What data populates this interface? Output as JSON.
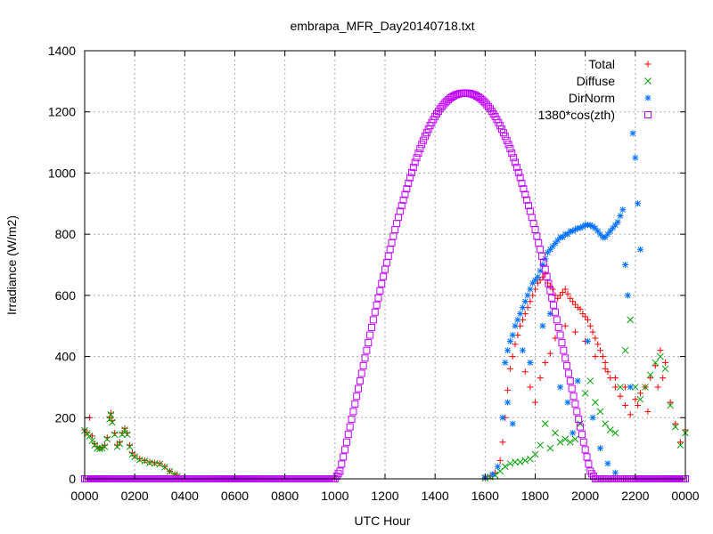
{
  "chart_data": {
    "type": "scatter",
    "title": "embrapa_MFR_Day20140718.txt",
    "xlabel": "UTC Hour",
    "ylabel": "Irradiance (W/m2)",
    "xlim": [
      0,
      24
    ],
    "ylim": [
      0,
      1400
    ],
    "x_ticks": [
      {
        "value": 0,
        "label": "0000"
      },
      {
        "value": 2,
        "label": "0200"
      },
      {
        "value": 4,
        "label": "0400"
      },
      {
        "value": 6,
        "label": "0600"
      },
      {
        "value": 8,
        "label": "0800"
      },
      {
        "value": 10,
        "label": "1000"
      },
      {
        "value": 12,
        "label": "1200"
      },
      {
        "value": 14,
        "label": "1400"
      },
      {
        "value": 16,
        "label": "1600"
      },
      {
        "value": 18,
        "label": "1800"
      },
      {
        "value": 20,
        "label": "2000"
      },
      {
        "value": 22,
        "label": "2200"
      },
      {
        "value": 24,
        "label": "0000"
      }
    ],
    "y_ticks": [
      0,
      200,
      400,
      600,
      800,
      1000,
      1200,
      1400
    ],
    "grid": true,
    "legend_position": "top-right",
    "series": [
      {
        "name": "Total",
        "marker": "plus",
        "color": "#ff0000",
        "points": [
          [
            0.0,
            160
          ],
          [
            0.1,
            150
          ],
          [
            0.2,
            200
          ],
          [
            0.3,
            140
          ],
          [
            0.4,
            115
          ],
          [
            0.5,
            105
          ],
          [
            0.6,
            100
          ],
          [
            0.7,
            102
          ],
          [
            0.8,
            110
          ],
          [
            0.9,
            135
          ],
          [
            1.0,
            200
          ],
          [
            1.05,
            215
          ],
          [
            1.1,
            190
          ],
          [
            1.2,
            150
          ],
          [
            1.3,
            110
          ],
          [
            1.4,
            120
          ],
          [
            1.5,
            150
          ],
          [
            1.6,
            165
          ],
          [
            1.7,
            150
          ],
          [
            1.8,
            110
          ],
          [
            1.9,
            85
          ],
          [
            2.0,
            75
          ],
          [
            2.2,
            65
          ],
          [
            2.4,
            60
          ],
          [
            2.6,
            55
          ],
          [
            2.8,
            52
          ],
          [
            3.0,
            50
          ],
          [
            3.2,
            40
          ],
          [
            3.4,
            25
          ],
          [
            3.6,
            15
          ],
          [
            3.7,
            10
          ],
          [
            16.0,
            2
          ],
          [
            16.2,
            8
          ],
          [
            16.4,
            20
          ],
          [
            16.6,
            60
          ],
          [
            16.7,
            120
          ],
          [
            16.8,
            200
          ],
          [
            16.9,
            290
          ],
          [
            17.0,
            360
          ],
          [
            17.1,
            400
          ],
          [
            17.2,
            440
          ],
          [
            17.3,
            470
          ],
          [
            17.4,
            500
          ],
          [
            17.5,
            520
          ],
          [
            17.6,
            540
          ],
          [
            17.7,
            560
          ],
          [
            17.8,
            580
          ],
          [
            17.9,
            600
          ],
          [
            18.0,
            620
          ],
          [
            18.1,
            640
          ],
          [
            18.2,
            650
          ],
          [
            18.3,
            660
          ],
          [
            18.4,
            670
          ],
          [
            18.5,
            640
          ],
          [
            18.6,
            630
          ],
          [
            18.7,
            620
          ],
          [
            18.8,
            600
          ],
          [
            18.9,
            590
          ],
          [
            19.0,
            600
          ],
          [
            19.1,
            610
          ],
          [
            19.2,
            620
          ],
          [
            19.3,
            605
          ],
          [
            19.4,
            590
          ],
          [
            19.5,
            580
          ],
          [
            19.6,
            570
          ],
          [
            19.7,
            560
          ],
          [
            19.8,
            555
          ],
          [
            19.9,
            540
          ],
          [
            20.0,
            530
          ],
          [
            20.1,
            520
          ],
          [
            20.2,
            500
          ],
          [
            20.3,
            480
          ],
          [
            20.4,
            460
          ],
          [
            20.5,
            440
          ],
          [
            20.6,
            420
          ],
          [
            20.7,
            400
          ],
          [
            20.8,
            380
          ],
          [
            20.9,
            350
          ],
          [
            21.0,
            330
          ],
          [
            21.2,
            300
          ],
          [
            21.4,
            270
          ],
          [
            21.6,
            240
          ],
          [
            21.8,
            210
          ],
          [
            22.0,
            260
          ],
          [
            22.2,
            280
          ],
          [
            22.4,
            300
          ],
          [
            22.6,
            330
          ],
          [
            22.8,
            370
          ],
          [
            23.0,
            420
          ],
          [
            23.2,
            380
          ],
          [
            23.4,
            250
          ],
          [
            23.6,
            180
          ],
          [
            23.8,
            120
          ],
          [
            24.0,
            160
          ],
          [
            17.6,
            350
          ],
          [
            17.8,
            300
          ],
          [
            18.0,
            250
          ],
          [
            18.2,
            330
          ],
          [
            18.4,
            380
          ],
          [
            18.6,
            410
          ],
          [
            18.8,
            460
          ],
          [
            19.2,
            500
          ],
          [
            19.6,
            480
          ],
          [
            20.0,
            450
          ],
          [
            20.4,
            400
          ],
          [
            20.8,
            360
          ],
          [
            21.2,
            330
          ],
          [
            21.6,
            300
          ],
          [
            22.1,
            240
          ],
          [
            22.5,
            220
          ],
          [
            22.9,
            300
          ],
          [
            23.1,
            330
          ]
        ]
      },
      {
        "name": "Diffuse",
        "marker": "cross",
        "color": "#00a000",
        "points": [
          [
            0.0,
            158
          ],
          [
            0.1,
            148
          ],
          [
            0.2,
            140
          ],
          [
            0.3,
            125
          ],
          [
            0.4,
            110
          ],
          [
            0.5,
            100
          ],
          [
            0.6,
            98
          ],
          [
            0.7,
            100
          ],
          [
            0.8,
            105
          ],
          [
            0.9,
            130
          ],
          [
            1.0,
            195
          ],
          [
            1.05,
            210
          ],
          [
            1.1,
            185
          ],
          [
            1.2,
            145
          ],
          [
            1.3,
            105
          ],
          [
            1.4,
            115
          ],
          [
            1.5,
            145
          ],
          [
            1.6,
            160
          ],
          [
            1.7,
            145
          ],
          [
            1.8,
            105
          ],
          [
            1.9,
            80
          ],
          [
            2.0,
            72
          ],
          [
            2.2,
            62
          ],
          [
            2.4,
            58
          ],
          [
            2.6,
            52
          ],
          [
            2.8,
            50
          ],
          [
            3.0,
            48
          ],
          [
            3.2,
            38
          ],
          [
            3.4,
            24
          ],
          [
            3.6,
            14
          ],
          [
            3.7,
            8
          ],
          [
            16.0,
            2
          ],
          [
            16.2,
            6
          ],
          [
            16.4,
            12
          ],
          [
            16.6,
            25
          ],
          [
            16.8,
            40
          ],
          [
            17.0,
            50
          ],
          [
            17.2,
            55
          ],
          [
            17.4,
            55
          ],
          [
            17.6,
            60
          ],
          [
            17.8,
            65
          ],
          [
            18.0,
            80
          ],
          [
            18.2,
            110
          ],
          [
            18.4,
            180
          ],
          [
            18.6,
            100
          ],
          [
            18.8,
            150
          ],
          [
            19.0,
            120
          ],
          [
            19.2,
            130
          ],
          [
            19.4,
            120
          ],
          [
            19.6,
            130
          ],
          [
            19.8,
            180
          ],
          [
            20.0,
            280
          ],
          [
            20.2,
            320
          ],
          [
            20.4,
            250
          ],
          [
            20.6,
            220
          ],
          [
            20.8,
            180
          ],
          [
            21.0,
            160
          ],
          [
            21.2,
            150
          ],
          [
            21.4,
            300
          ],
          [
            21.6,
            420
          ],
          [
            21.8,
            520
          ],
          [
            22.0,
            300
          ],
          [
            22.2,
            260
          ],
          [
            22.4,
            300
          ],
          [
            22.6,
            340
          ],
          [
            22.8,
            380
          ],
          [
            23.0,
            400
          ],
          [
            23.2,
            360
          ],
          [
            23.4,
            240
          ],
          [
            23.6,
            170
          ],
          [
            23.8,
            110
          ],
          [
            24.0,
            150
          ]
        ]
      },
      {
        "name": "DirNorm",
        "marker": "star",
        "color": "#0070ff",
        "points": [
          [
            16.0,
            5
          ],
          [
            16.3,
            15
          ],
          [
            16.5,
            40
          ],
          [
            16.7,
            200
          ],
          [
            16.8,
            380
          ],
          [
            16.9,
            420
          ],
          [
            17.0,
            450
          ],
          [
            17.1,
            470
          ],
          [
            17.2,
            500
          ],
          [
            17.3,
            520
          ],
          [
            17.4,
            540
          ],
          [
            17.5,
            560
          ],
          [
            17.6,
            580
          ],
          [
            17.7,
            600
          ],
          [
            17.8,
            620
          ],
          [
            17.9,
            640
          ],
          [
            18.0,
            650
          ],
          [
            18.1,
            660
          ],
          [
            18.2,
            680
          ],
          [
            18.3,
            700
          ],
          [
            18.4,
            720
          ],
          [
            18.5,
            740
          ],
          [
            18.6,
            750
          ],
          [
            18.7,
            760
          ],
          [
            18.8,
            770
          ],
          [
            18.9,
            780
          ],
          [
            19.0,
            790
          ],
          [
            19.1,
            790
          ],
          [
            19.2,
            800
          ],
          [
            19.3,
            800
          ],
          [
            19.4,
            810
          ],
          [
            19.5,
            810
          ],
          [
            19.6,
            815
          ],
          [
            19.7,
            820
          ],
          [
            19.8,
            820
          ],
          [
            19.9,
            825
          ],
          [
            20.0,
            830
          ],
          [
            20.1,
            830
          ],
          [
            20.2,
            830
          ],
          [
            20.3,
            825
          ],
          [
            20.4,
            820
          ],
          [
            20.5,
            810
          ],
          [
            20.6,
            800
          ],
          [
            20.7,
            790
          ],
          [
            20.8,
            790
          ],
          [
            20.9,
            800
          ],
          [
            21.0,
            810
          ],
          [
            21.1,
            820
          ],
          [
            21.2,
            830
          ],
          [
            21.3,
            840
          ],
          [
            21.4,
            860
          ],
          [
            21.5,
            880
          ],
          [
            21.6,
            700
          ],
          [
            21.7,
            600
          ],
          [
            21.8,
            300
          ],
          [
            21.9,
            1130
          ],
          [
            22.0,
            1050
          ],
          [
            22.1,
            900
          ],
          [
            22.2,
            750
          ],
          [
            16.9,
            250
          ],
          [
            17.1,
            180
          ],
          [
            17.5,
            420
          ],
          [
            17.8,
            380
          ],
          [
            18.3,
            500
          ],
          [
            18.6,
            540
          ],
          [
            19.0,
            300
          ],
          [
            19.3,
            250
          ],
          [
            19.5,
            150
          ],
          [
            19.7,
            320
          ],
          [
            20.1,
            450
          ],
          [
            20.3,
            200
          ],
          [
            20.6,
            100
          ],
          [
            20.9,
            50
          ],
          [
            21.2,
            20
          ]
        ]
      },
      {
        "name": "1380*cos(zth)",
        "marker": "square",
        "color": "#c000ff",
        "x": [
          0,
          0.5,
          1,
          1.5,
          2,
          2.5,
          3,
          3.5,
          4,
          4.5,
          5,
          5.5,
          6,
          6.5,
          7,
          7.5,
          8,
          8.5,
          9,
          9.5,
          10,
          10.2,
          10.4,
          10.6,
          10.8,
          11,
          11.2,
          11.4,
          11.6,
          11.8,
          12,
          12.2,
          12.4,
          12.6,
          12.8,
          13,
          13.2,
          13.4,
          13.6,
          13.8,
          14,
          14.2,
          14.4,
          14.6,
          14.8,
          15,
          15.2,
          15.4,
          15.6,
          15.8,
          16,
          16.2,
          16.4,
          16.6,
          16.8,
          17,
          17.2,
          17.4,
          17.6,
          17.8,
          18,
          18.2,
          18.4,
          18.6,
          18.8,
          19,
          19.2,
          19.4,
          19.6,
          19.8,
          20,
          20.2,
          20.4,
          20.6,
          20.8,
          21,
          21.2,
          21.4,
          21.6,
          21.8,
          22,
          22.5,
          23,
          23.5,
          24
        ],
        "values": [
          0,
          0,
          0,
          0,
          0,
          0,
          0,
          0,
          0,
          0,
          0,
          0,
          0,
          0,
          0,
          0,
          0,
          0,
          0,
          0,
          0,
          25,
          95,
          170,
          245,
          320,
          395,
          470,
          545,
          615,
          685,
          750,
          815,
          875,
          930,
          985,
          1035,
          1080,
          1120,
          1155,
          1185,
          1210,
          1230,
          1245,
          1255,
          1260,
          1262,
          1260,
          1255,
          1245,
          1230,
          1210,
          1185,
          1155,
          1120,
          1080,
          1035,
          985,
          930,
          875,
          815,
          750,
          685,
          615,
          545,
          470,
          395,
          320,
          245,
          170,
          95,
          25,
          0,
          0,
          0,
          0,
          0,
          0,
          0,
          0,
          0,
          0,
          0,
          0,
          0
        ]
      }
    ]
  }
}
